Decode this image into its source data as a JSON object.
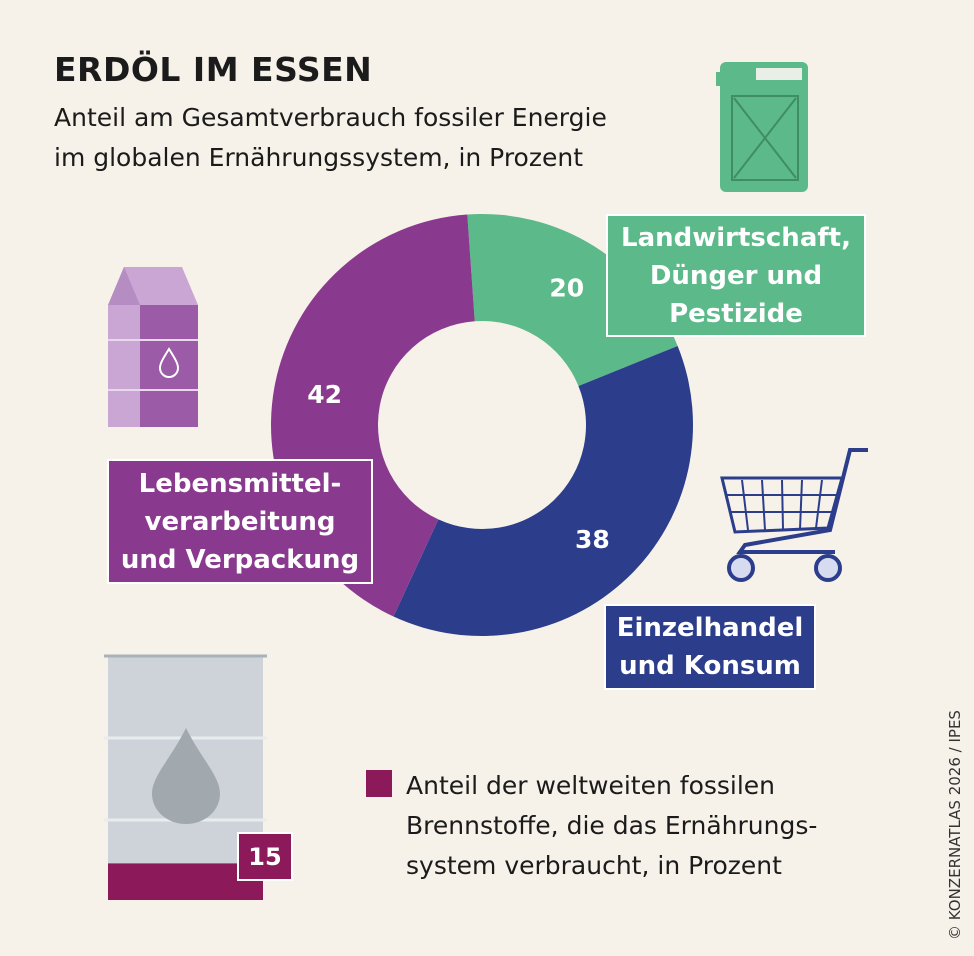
{
  "chart_data": [
    {
      "type": "donut",
      "title": "ERDÖL IM ESSEN",
      "subtitle": "Anteil am Gesamtverbrauch fossiler Energie\nim globalen Ernährungssystem, in Prozent",
      "categories": [
        "Landwirtschaft,\nDünger und\nPestizide",
        "Einzelhandel\nund Konsum",
        "Lebensmittel-\nverarbeitung\nund Verpackung"
      ],
      "values": [
        20,
        38,
        42
      ],
      "colors": [
        "#5cb989",
        "#2b3d8b",
        "#8a3a8e"
      ]
    },
    {
      "type": "barrel",
      "series": [
        {
          "name": "Anteil der weltweiten fossilen\nBrennstoffe, die das Ernährungs-\nsystem verbraucht, in Prozent",
          "color": "#8c1a5a",
          "values": [
            15
          ]
        }
      ],
      "ylim": [
        0,
        100
      ]
    }
  ],
  "credit": "© KONZERNATLAS 2026 / IPES"
}
